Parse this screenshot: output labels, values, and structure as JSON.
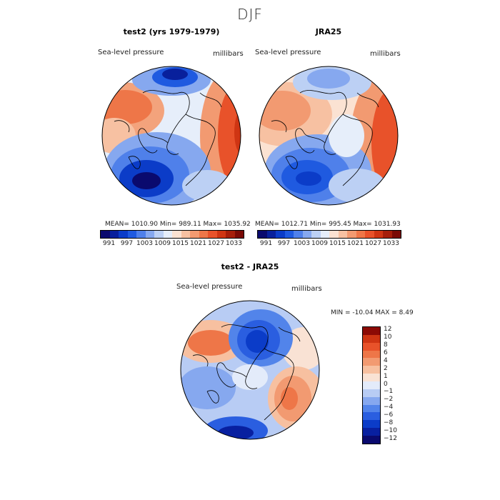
{
  "season": "DJF",
  "panel1": {
    "title": "test2 (yrs 1979-1979)",
    "variable": "Sea-level pressure",
    "units": "millibars",
    "stats": "MEAN= 1010.90   Min= 989.11   Max= 1035.92"
  },
  "panel2": {
    "title": "JRA25",
    "variable": "Sea-level pressure",
    "units": "millibars",
    "stats": "MEAN= 1012.71   Min= 995.45   Max= 1031.93"
  },
  "panel3": {
    "title": "test2 - JRA25",
    "variable": "Sea-level pressure",
    "units": "millibars",
    "stats": "MIN = -10.04  MAX =   8.49"
  },
  "colorbar_abs": {
    "colors": [
      "#0a0a6e",
      "#08209c",
      "#0b3cc8",
      "#1f5ae0",
      "#4f80ea",
      "#86a8ef",
      "#bcd0f4",
      "#e6eefa",
      "#fbe2d2",
      "#f7c1a2",
      "#f29a71",
      "#ee7648",
      "#e8522a",
      "#cf3513",
      "#a61e0a",
      "#7a0a05"
    ],
    "labels": [
      "991",
      "997",
      "1003",
      "1009",
      "1015",
      "1021",
      "1027",
      "1033"
    ]
  },
  "colorbar_diff": {
    "colors": [
      "#0a0a6e",
      "#0820a0",
      "#0b3cc8",
      "#2a5ee0",
      "#5284ea",
      "#86a8ef",
      "#b8ccf4",
      "#e3ebfa",
      "#f9e2d4",
      "#f7c0a0",
      "#f29a71",
      "#ee7648",
      "#e8522a",
      "#cf3513",
      "#8c0a05"
    ],
    "labels": [
      "12",
      "10",
      "8",
      "6",
      "4",
      "2",
      "1",
      "0",
      "−1",
      "−2",
      "−4",
      "−6",
      "−8",
      "−10",
      "−12"
    ]
  }
}
